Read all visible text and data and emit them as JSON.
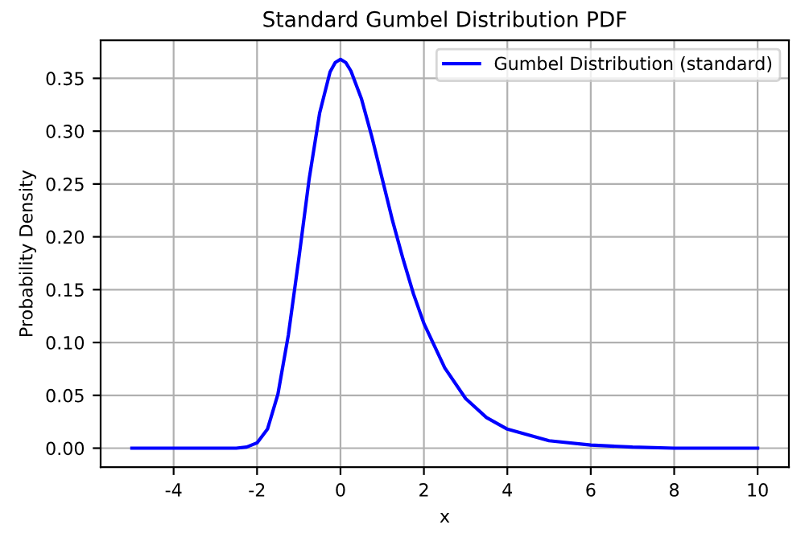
{
  "chart_data": {
    "type": "line",
    "title": "Standard Gumbel Distribution PDF",
    "xlabel": "x",
    "ylabel": "Probability Density",
    "series": [
      {
        "name": "Gumbel Distribution (standard)",
        "color": "#0000ff",
        "x": [
          -5,
          -4,
          -3,
          -2.5,
          -2.25,
          -2,
          -1.75,
          -1.5,
          -1.25,
          -1,
          -0.75,
          -0.5,
          -0.25,
          -0.125,
          0,
          0.125,
          0.25,
          0.5,
          0.75,
          1,
          1.25,
          1.5,
          1.75,
          2,
          2.5,
          3,
          3.5,
          4,
          5,
          6,
          7,
          8,
          10
        ],
        "values": [
          0,
          0,
          0,
          0,
          0.001,
          0.005,
          0.018,
          0.051,
          0.107,
          0.179,
          0.255,
          0.317,
          0.356,
          0.365,
          0.368,
          0.365,
          0.357,
          0.331,
          0.295,
          0.255,
          0.215,
          0.179,
          0.146,
          0.118,
          0.076,
          0.047,
          0.029,
          0.018,
          0.007,
          0.003,
          0.001,
          0,
          0
        ]
      }
    ],
    "xlim": [
      -5.75,
      10.75
    ],
    "xticks": [
      -4,
      -2,
      0,
      2,
      4,
      6,
      8,
      10
    ],
    "ylim": [
      -0.018,
      0.386
    ],
    "yticks": [
      {
        "value": 0,
        "label": "0.00"
      },
      {
        "value": 0.05,
        "label": "0.05"
      },
      {
        "value": 0.1,
        "label": "0.10"
      },
      {
        "value": 0.15,
        "label": "0.15"
      },
      {
        "value": 0.2,
        "label": "0.20"
      },
      {
        "value": 0.25,
        "label": "0.25"
      },
      {
        "value": 0.3,
        "label": "0.30"
      },
      {
        "value": 0.35,
        "label": "0.35"
      }
    ],
    "grid": true,
    "legend": "top right",
    "line_style": "solid",
    "marker": "none"
  }
}
